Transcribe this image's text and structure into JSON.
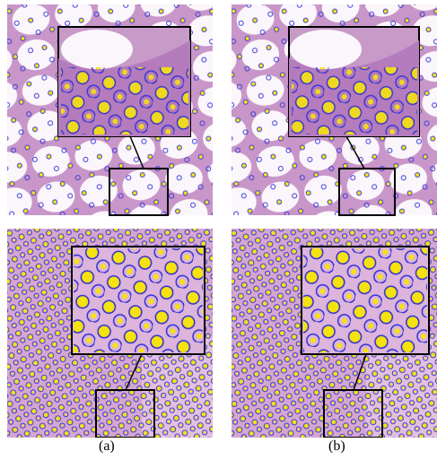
{
  "figure": {
    "panels": [
      {
        "label": "(a)"
      },
      {
        "label": "(b)"
      }
    ]
  }
}
